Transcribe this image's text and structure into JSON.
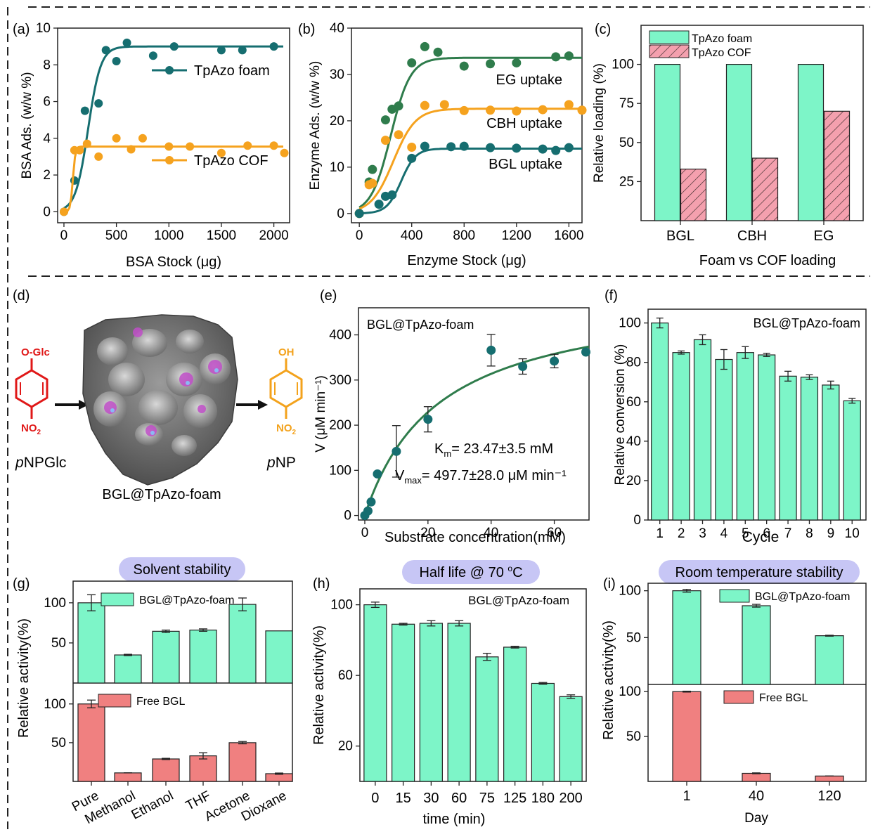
{
  "colors": {
    "teal": "#166e70",
    "orange": "#f5a21e",
    "green": "#2f7c4c",
    "mint": "#7df5c8",
    "salmon": "#f08080",
    "pink": "#f4a0ae",
    "red": "#e01818",
    "amber": "#f3a21c",
    "lavender": "#c7c6f5"
  },
  "chart_data": [
    {
      "panel": "(a)",
      "type": "scatter",
      "xlabel": "BSA Stock (μg)",
      "ylabel": "BSA Ads. (w/w %)",
      "xlim": [
        -60,
        2150
      ],
      "ylim": [
        -0.6,
        10
      ],
      "xticks": [
        0,
        500,
        1000,
        1500,
        2000
      ],
      "yticks": [
        0,
        2,
        4,
        6,
        8,
        10
      ],
      "series": [
        {
          "name": "TpAzo foam",
          "color": "#166e70",
          "x": [
            0,
            100,
            200,
            330,
            400,
            500,
            600,
            850,
            1050,
            1500,
            1700,
            2000
          ],
          "y": [
            0,
            1.7,
            5.5,
            5.9,
            8.8,
            8.2,
            9.2,
            8.5,
            9.0,
            8.8,
            8.8,
            9.0
          ],
          "fit_plateau": 9.0,
          "fit_mid": 230,
          "fit_width": 60
        },
        {
          "name": "TpAzo COF",
          "color": "#f5a21e",
          "x": [
            0,
            100,
            150,
            220,
            330,
            500,
            640,
            750,
            1000,
            1200,
            1500,
            1750,
            2000,
            2100
          ],
          "y": [
            0,
            3.35,
            3.35,
            3.7,
            3.0,
            4.0,
            3.4,
            4.0,
            3.55,
            3.55,
            3.2,
            3.6,
            3.6,
            3.2
          ],
          "fit_plateau": 3.55,
          "fit_mid": 85,
          "fit_width": 12
        }
      ]
    },
    {
      "panel": "(b)",
      "type": "scatter",
      "xlabel": "Enzyme Stock (μg)",
      "ylabel": "Enzyme  Ads. (w/w %)",
      "xlim": [
        -60,
        1700
      ],
      "ylim": [
        -2,
        40
      ],
      "xticks": [
        0,
        400,
        800,
        1200,
        1600
      ],
      "yticks": [
        0,
        10,
        20,
        30,
        40
      ],
      "series": [
        {
          "name": "EG uptake",
          "color": "#2f7c4c",
          "x": [
            0,
            75,
            100,
            200,
            250,
            300,
            400,
            500,
            600,
            800,
            1000,
            1200,
            1500,
            1600
          ],
          "y": [
            0,
            6.8,
            9.5,
            20.2,
            22.5,
            23.2,
            32.5,
            36.0,
            34.8,
            31.8,
            32.3,
            32.5,
            33.8,
            34.0
          ],
          "fit_plateau": 33.6,
          "fit_mid": 240,
          "fit_width": 75
        },
        {
          "name": "CBH uptake",
          "color": "#f5a21e",
          "x": [
            0,
            75,
            100,
            200,
            300,
            400,
            500,
            650,
            800,
            1000,
            1200,
            1400,
            1600,
            1700
          ],
          "y": [
            0,
            6.2,
            6.5,
            15.8,
            17.0,
            14.3,
            23.3,
            23.5,
            22.2,
            22.3,
            22.1,
            22.4,
            23.5,
            22.3
          ],
          "fit_plateau": 22.6,
          "fit_mid": 260,
          "fit_width": 85
        },
        {
          "name": "BGL uptake",
          "color": "#166e70",
          "x": [
            0,
            150,
            200,
            250,
            400,
            500,
            700,
            800,
            1000,
            1200,
            1400,
            1500,
            1600
          ],
          "y": [
            0,
            2.0,
            3.7,
            4.0,
            11.9,
            14.5,
            14.4,
            14.5,
            14.2,
            14.1,
            13.9,
            13.6,
            14.2
          ],
          "fit_plateau": 14.0,
          "fit_mid": 320,
          "fit_width": 55
        }
      ]
    },
    {
      "panel": "(c)",
      "type": "bar",
      "xlabel": "Foam vs COF loading",
      "ylabel": "Relative loading (%)",
      "ylim": [
        0,
        125
      ],
      "yticks": [
        25,
        50,
        75,
        100
      ],
      "categories": [
        "BGL",
        "CBH",
        "EG"
      ],
      "series": [
        {
          "name": "TpAzo foam",
          "values": [
            100,
            100,
            100
          ]
        },
        {
          "name": "TpAzo COF",
          "values": [
            33,
            40,
            70
          ]
        }
      ]
    },
    {
      "panel": "(e)",
      "type": "scatter",
      "title": "BGL@TpAzo-foam",
      "xlabel": "Substrate concentration(mM)",
      "ylabel": "V (μM min⁻¹)",
      "xlim": [
        -2,
        71
      ],
      "ylim": [
        -10,
        460
      ],
      "xticks": [
        0,
        20,
        40,
        60
      ],
      "yticks": [
        0,
        100,
        200,
        300,
        400
      ],
      "x": [
        0,
        1,
        2,
        4,
        10,
        20,
        40,
        50,
        60,
        70
      ],
      "y": [
        0,
        10,
        30,
        92,
        142,
        213,
        366,
        330,
        342,
        362
      ],
      "err": [
        0,
        0,
        0,
        0,
        57,
        28,
        35,
        17,
        15,
        0
      ],
      "km_label": "K",
      "km_sub": "m",
      "km_text": "= 23.47±3.5 mM",
      "vmax_label": "V",
      "vmax_sub": "max",
      "vmax_text": "= 497.7±28.0 μM min⁻¹",
      "Km": 23.47,
      "Vmax": 497.7
    },
    {
      "panel": "(f)",
      "type": "bar",
      "title": "BGL@TpAzo-foam",
      "xlabel": "Cycle",
      "ylabel": "Relative conversion (%)",
      "ylim": [
        0,
        107
      ],
      "yticks": [
        0,
        20,
        40,
        60,
        80,
        100
      ],
      "categories": [
        "1",
        "2",
        "3",
        "4",
        "5",
        "6",
        "7",
        "8",
        "9",
        "10"
      ],
      "values": [
        100,
        85,
        91.5,
        81.5,
        85,
        83.8,
        73,
        72.5,
        68.5,
        60.5
      ],
      "err": [
        2.5,
        0.8,
        2.5,
        5,
        3,
        0.8,
        2.5,
        1.2,
        2,
        1.2
      ]
    },
    {
      "panel": "(g)",
      "type": "bar",
      "title": "Solvent stability",
      "ylabel": "Relative activity(%)",
      "categories": [
        "Pure",
        "Methanol",
        "Ethanol",
        "THF",
        "Acetone",
        "Dioxane"
      ],
      "series": [
        {
          "name": "BGL@TpAzo-foam",
          "values": [
            100,
            35,
            64.5,
            66,
            98,
            65
          ],
          "err": [
            10,
            0.8,
            1.5,
            1.5,
            8,
            0
          ]
        },
        {
          "name": "Free BGL",
          "values": [
            100,
            11,
            29,
            33,
            50,
            10
          ],
          "err": [
            5,
            0,
            0.8,
            4,
            1.5,
            0.8
          ]
        }
      ],
      "top_ylim": [
        0,
        127
      ],
      "top_yticks": [
        50,
        100
      ],
      "bottom_ylim": [
        0,
        127
      ],
      "bottom_yticks": [
        50,
        100
      ]
    },
    {
      "panel": "(h)",
      "type": "bar",
      "title": "Half life @ 70 °C",
      "title_main": "Half life @ 70 ",
      "title_sup": "o",
      "title_end": "C",
      "annotation": "BGL@TpAzo-foam",
      "xlabel": "time (min)",
      "ylabel": "Relative activity(%)",
      "ylim": [
        0,
        109
      ],
      "yticks": [
        20,
        60,
        100
      ],
      "categories": [
        "0",
        "15",
        "30",
        "60",
        "75",
        "125",
        "180",
        "200"
      ],
      "values": [
        100,
        89,
        89.5,
        89.5,
        70.5,
        76,
        55.5,
        48
      ],
      "err": [
        1.5,
        0.5,
        1.5,
        1.5,
        2,
        0.5,
        0.5,
        1
      ]
    },
    {
      "panel": "(i)",
      "type": "bar",
      "title": "Room temperature stability",
      "xlabel": "Day",
      "ylabel": "Relative activity(%)",
      "categories": [
        "1",
        "40",
        "120"
      ],
      "series": [
        {
          "name": "BGL@TpAzo-foam",
          "values": [
            100,
            84,
            52
          ],
          "err": [
            1.5,
            1.5,
            0.5
          ]
        },
        {
          "name": "Free BGL",
          "values": [
            100,
            9,
            6
          ],
          "err": [
            0.5,
            0.5,
            0
          ]
        }
      ],
      "top_ylim": [
        0,
        108
      ],
      "top_yticks": [
        50,
        100
      ],
      "bottom_ylim": [
        0,
        108
      ],
      "bottom_yticks": [
        50,
        100
      ]
    }
  ],
  "panel_d": {
    "label": "(d)",
    "substrate_group": "O-Glc",
    "product_group": "OH",
    "nitro": "NO",
    "nitro_sub": "2",
    "substrate_prefix": "p",
    "substrate_name": "NPGlc",
    "product_prefix": "p",
    "product_name": "NP",
    "caption": "BGL@TpAzo-foam"
  }
}
